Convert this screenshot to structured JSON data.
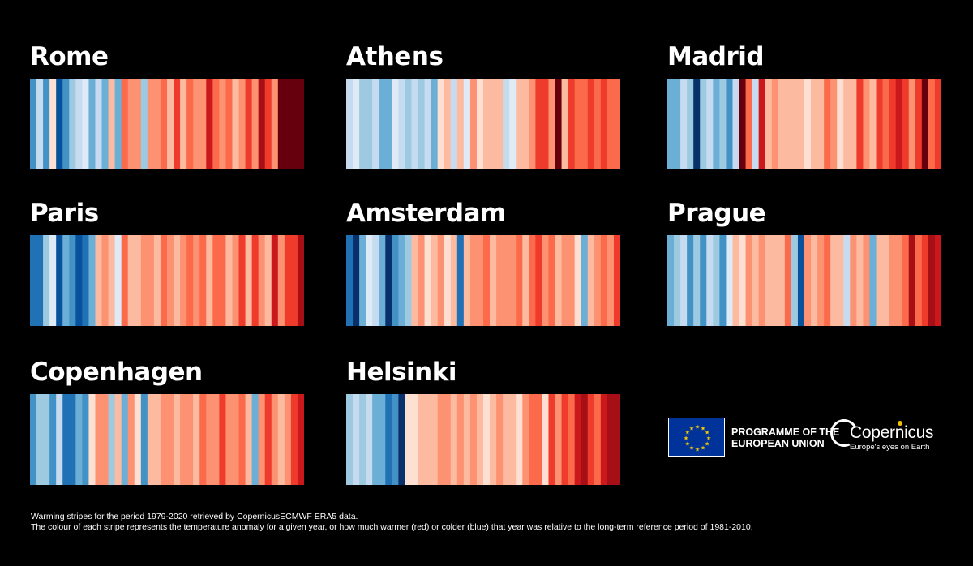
{
  "chart_data": [
    {
      "type": "heatmap",
      "title": "Rome",
      "years": [
        1979,
        2020
      ],
      "values": [
        -0.9,
        -0.2,
        -1.0,
        0.1,
        -1.3,
        -1.0,
        -0.4,
        -0.3,
        -0.1,
        -0.6,
        -0.3,
        -0.6,
        0.3,
        -0.8,
        0.6,
        0.5,
        0.5,
        -0.5,
        0.4,
        0.5,
        0.7,
        0.3,
        0.8,
        0.2,
        0.6,
        0.5,
        0.4,
        1.2,
        0.6,
        0.4,
        0.6,
        0.3,
        0.5,
        0.9,
        0.5,
        1.3,
        1.0,
        0.5,
        1.6,
        1.5,
        1.5,
        1.8
      ]
    },
    {
      "type": "heatmap",
      "title": "Athens",
      "years": [
        1979,
        2020
      ],
      "values": [
        -0.3,
        -0.1,
        -0.4,
        -0.5,
        -0.2,
        -0.7,
        -0.8,
        -0.1,
        -0.3,
        -0.5,
        -0.2,
        -0.4,
        -0.2,
        -0.6,
        0.0,
        0.2,
        -0.3,
        0.2,
        -0.1,
        0.4,
        0.1,
        0.3,
        0.2,
        0.3,
        -0.2,
        -0.1,
        0.2,
        0.3,
        0.4,
        0.9,
        0.9,
        0.5,
        1.6,
        0.3,
        1.0,
        0.7,
        0.7,
        0.9,
        0.6,
        0.8,
        0.7,
        0.6
      ]
    },
    {
      "type": "heatmap",
      "title": "Madrid",
      "years": [
        1979,
        2020
      ],
      "values": [
        -0.7,
        -0.7,
        -0.3,
        -0.4,
        -1.6,
        -0.5,
        -0.2,
        -0.8,
        -0.4,
        -1.0,
        -0.3,
        1.6,
        0.6,
        -0.2,
        1.2,
        0.3,
        0.5,
        0.2,
        0.3,
        0.2,
        0.3,
        0.1,
        0.2,
        0.2,
        0.6,
        0.5,
        0.1,
        0.2,
        0.3,
        0.8,
        0.4,
        0.3,
        0.9,
        0.6,
        1.0,
        1.1,
        0.9,
        0.4,
        0.8,
        1.6,
        0.7,
        1.0
      ]
    },
    {
      "type": "heatmap",
      "title": "Paris",
      "years": [
        1979,
        2020
      ],
      "values": [
        -1.1,
        -1.1,
        -0.4,
        -0.1,
        -1.3,
        -0.7,
        -1.0,
        -1.3,
        -1.1,
        -0.8,
        0.2,
        0.4,
        0.3,
        -0.1,
        0.6,
        0.3,
        0.3,
        0.5,
        0.4,
        0.2,
        0.7,
        0.5,
        0.3,
        0.4,
        0.6,
        0.5,
        0.7,
        0.3,
        0.6,
        0.6,
        0.3,
        0.4,
        1.0,
        0.3,
        0.8,
        0.4,
        0.2,
        1.2,
        0.5,
        0.9,
        1.0,
        1.3
      ]
    },
    {
      "type": "heatmap",
      "title": "Amsterdam",
      "years": [
        1979,
        2020
      ],
      "values": [
        -1.2,
        -1.6,
        -0.6,
        -0.1,
        -0.3,
        -0.8,
        -1.5,
        -0.9,
        -0.8,
        -0.4,
        0.3,
        0.4,
        0.0,
        0.3,
        0.5,
        0.1,
        0.3,
        -1.1,
        0.3,
        0.5,
        0.5,
        0.6,
        0.3,
        0.5,
        0.4,
        0.5,
        0.6,
        0.3,
        0.7,
        0.9,
        0.4,
        0.6,
        0.2,
        0.4,
        0.5,
        0.1,
        -0.7,
        0.3,
        0.4,
        0.6,
        0.5,
        0.8
      ]
    },
    {
      "type": "heatmap",
      "title": "Prague",
      "years": [
        1979,
        2020
      ],
      "values": [
        -0.6,
        -0.5,
        -0.3,
        -0.9,
        -0.5,
        -0.9,
        -0.3,
        -0.4,
        -0.9,
        -0.1,
        0.3,
        0.1,
        0.4,
        0.3,
        0.4,
        0.2,
        0.3,
        0.3,
        0.6,
        -0.5,
        -1.3,
        0.4,
        0.2,
        0.4,
        0.6,
        0.3,
        0.3,
        -0.2,
        0.4,
        0.3,
        0.4,
        -0.7,
        0.2,
        0.3,
        0.4,
        0.4,
        0.6,
        1.4,
        0.6,
        1.0,
        1.4,
        1.2
      ]
    },
    {
      "type": "heatmap",
      "title": "Copenhagen",
      "years": [
        1979,
        2020
      ],
      "values": [
        -1.0,
        -0.5,
        -0.4,
        -1.0,
        -0.2,
        -1.2,
        -1.1,
        -0.8,
        -1.0,
        0.1,
        0.4,
        0.4,
        -0.4,
        0.3,
        -0.7,
        0.4,
        0.1,
        -1.0,
        0.2,
        0.3,
        0.5,
        0.4,
        0.3,
        0.5,
        0.4,
        0.3,
        0.6,
        0.4,
        0.4,
        0.8,
        0.5,
        0.4,
        0.6,
        0.3,
        -0.7,
        0.4,
        0.8,
        0.5,
        0.2,
        0.5,
        1.0,
        1.2
      ]
    },
    {
      "type": "heatmap",
      "title": "Helsinki",
      "years": [
        1979,
        2020
      ],
      "values": [
        -0.5,
        -0.3,
        -0.4,
        -0.3,
        -0.6,
        -0.8,
        -1.2,
        -0.9,
        -1.5,
        0.0,
        0.1,
        0.3,
        0.3,
        0.2,
        0.4,
        0.5,
        0.2,
        0.5,
        0.2,
        0.4,
        0.3,
        0.0,
        0.3,
        0.4,
        0.2,
        0.3,
        0.1,
        0.4,
        0.6,
        0.6,
        0.1,
        0.8,
        0.5,
        1.0,
        0.6,
        1.1,
        1.3,
        0.9,
        0.7,
        1.2,
        1.3,
        1.4
      ]
    }
  ],
  "palette": {
    "cold": [
      "#08306b",
      "#08519c",
      "#2171b5",
      "#4292c6",
      "#6baed6",
      "#9ecae1",
      "#c6dbef",
      "#deebf7"
    ],
    "warm": [
      "#fee0d2",
      "#fcbba1",
      "#fc9272",
      "#fb6a4a",
      "#ef3b2c",
      "#cb181d",
      "#a50f15",
      "#67000d"
    ]
  },
  "logo": {
    "programme_line1": "PROGRAMME OF THE",
    "programme_line2": "EUROPEAN UNION",
    "copernicus_name": "Copernicus",
    "copernicus_tagline": "Europe's eyes on Earth"
  },
  "footnote": {
    "line1": "Warming stripes for the period 1979-2020 retrieved by CopernicusECMWF ERA5 data.",
    "line2": "The colour of each stripe represents the temperature anomaly for a given year, or how much warmer (red) or colder (blue) that year was relative to the long-term reference period of 1981-2010."
  }
}
